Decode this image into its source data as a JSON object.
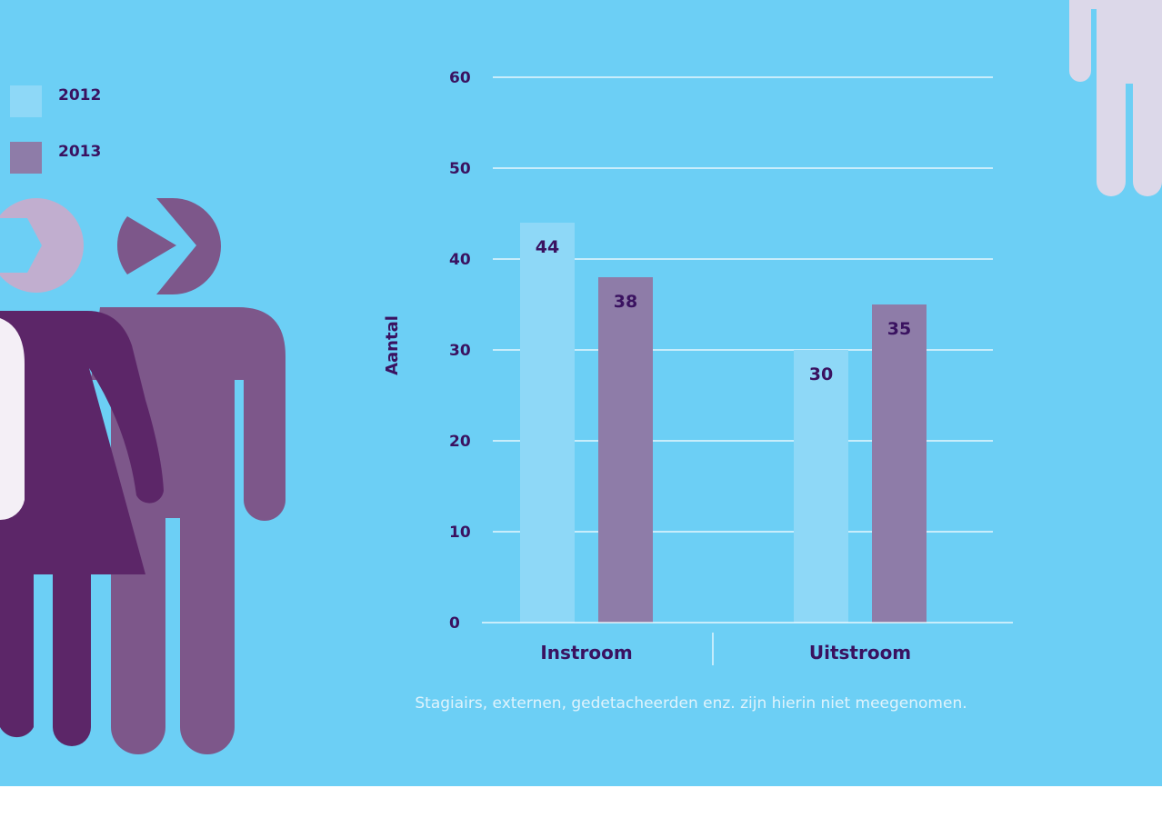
{
  "colors": {
    "background": "#6ccff5",
    "footer": "#ffffff",
    "series_2012": "#8ed8f7",
    "series_2013": "#8e7ca8",
    "text": "#3a1260",
    "grid": "#ffffff",
    "note": "#dff3fc",
    "figure_woman": "#5c2668",
    "figure_woman_head": "#c1aecf",
    "figure_man": "#7d578a",
    "figure_light": "#f4eff6",
    "figure_partial": "#dcd8e9"
  },
  "decor": {
    "left": "people-icon-group",
    "right": "person-icon-partial"
  },
  "chart_data": {
    "type": "bar",
    "categories": [
      "Instroom",
      "Uitstroom"
    ],
    "series": [
      {
        "name": "2012",
        "values": [
          44,
          30
        ]
      },
      {
        "name": "2013",
        "values": [
          38,
          35
        ]
      }
    ],
    "value_labels": [
      [
        "44",
        "30"
      ],
      [
        "38",
        "35"
      ]
    ],
    "title": "",
    "xlabel": "",
    "ylabel": "Aantal",
    "ylim": [
      0,
      60
    ],
    "yticks": [
      0,
      10,
      20,
      30,
      40,
      50,
      60
    ],
    "grid": true,
    "legend_position": "top-left",
    "note": "Stagiairs, externen, gedetacheerden enz. zijn hierin niet meegenomen."
  }
}
